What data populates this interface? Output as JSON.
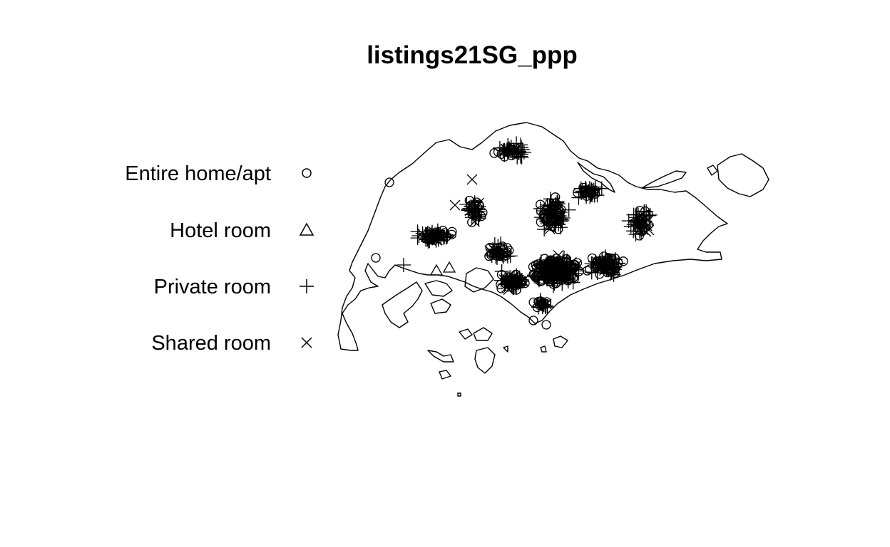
{
  "chart_data": {
    "type": "scatter",
    "title": "listings21SG_ppp",
    "xlabel": "",
    "ylabel": "",
    "grid": false,
    "legend_position": "left",
    "marks": [
      {
        "label": "Entire home/apt",
        "symbol": "circle"
      },
      {
        "label": "Hotel room",
        "symbol": "triangle"
      },
      {
        "label": "Private room",
        "symbol": "plus"
      },
      {
        "label": "Shared room",
        "symbol": "cross"
      }
    ]
  },
  "colors": {
    "ink": "#000000",
    "background": "#ffffff"
  }
}
